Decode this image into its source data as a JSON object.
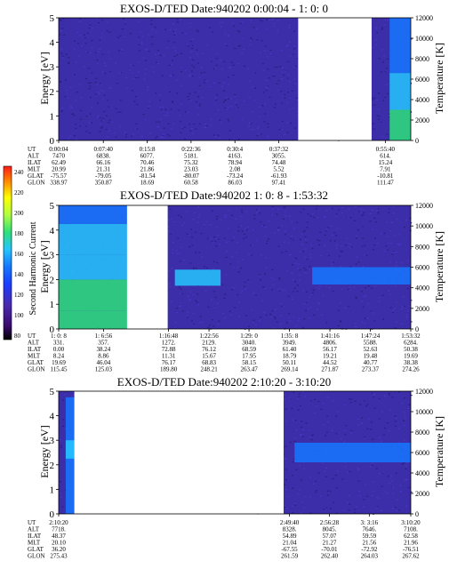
{
  "colorbar": {
    "label": "Second Harmonic Current",
    "ticks": [
      "240",
      "220",
      "200",
      "180",
      "160",
      "140",
      "120",
      "100",
      "80"
    ]
  },
  "chart_data": [
    {
      "type": "heatmap",
      "title": "EXOS-D/TED   Date:940202  0:00:04 - 1: 0: 0",
      "ylabel": "Energy [eV]",
      "y2label": "Temperature [K]",
      "ylim": [
        0,
        5
      ],
      "y2lim": [
        0,
        12000
      ],
      "yticks": [
        "0",
        "1",
        "2",
        "3",
        "4",
        "5"
      ],
      "y2ticks": [
        "0",
        "2000",
        "4000",
        "6000",
        "8000",
        "10000",
        "12000"
      ],
      "x": [
        "0:00:04",
        "0:07:40",
        "0:15:8",
        "0:22:36",
        "0:30:4",
        "0:37:32",
        "0:55:40"
      ],
      "x_axis_range": [
        "0:00:04",
        "1: 0: 0"
      ],
      "no_data_gaps": [
        [
          "0:40:50",
          "0:53:20"
        ]
      ],
      "table_rows": [
        {
          "label": "UT",
          "values": [
            "0:00:04",
            "0:07:40",
            "0:15:8",
            "0:22:36",
            "0:30:4",
            "0:37:32",
            "0:55:40"
          ]
        },
        {
          "label": "ALT",
          "values": [
            "7470",
            "6838.",
            "6077.",
            "5181.",
            "4163.",
            "3055.",
            "614."
          ]
        },
        {
          "label": "ILAT",
          "values": [
            "62.49",
            "66.16",
            "70.46",
            "75.32",
            "78.94",
            "74.48",
            "15.24"
          ]
        },
        {
          "label": "MLT",
          "values": [
            "20.99",
            "21.31",
            "21.86",
            "23.03",
            "2.08",
            "5.52",
            "7.91"
          ]
        },
        {
          "label": "GLAT",
          "values": [
            "-75.57",
            "-79.05",
            "-81.54",
            "-80.07",
            "-73.24",
            "-61.93",
            "-10.81"
          ]
        },
        {
          "label": "GLON",
          "values": [
            "338.97",
            "350.87",
            "18.69",
            "60.58",
            "86.03",
            "97.41",
            "111.47"
          ]
        }
      ]
    },
    {
      "type": "heatmap",
      "title": "EXOS-D/TED   Date:940202  1: 0: 8 - 1:53:32",
      "ylabel": "Energy [eV]",
      "y2label": "Temperature [K]",
      "ylim": [
        0,
        5
      ],
      "y2lim": [
        0,
        12000
      ],
      "yticks": [
        "0",
        "1",
        "2",
        "3",
        "4",
        "5"
      ],
      "y2ticks": [
        "0",
        "2000",
        "4000",
        "6000",
        "8000",
        "10000",
        "12000"
      ],
      "x": [
        "1: 0: 8",
        "1: 6:56",
        "1:16:48",
        "1:22:56",
        "1:29: 0",
        "1:35: 8",
        "1:41:16",
        "1:47:24",
        "1:53:32"
      ],
      "x_axis_range": [
        "1: 0: 8",
        "1:53:32"
      ],
      "no_data_gaps": [
        [
          "1:10:30",
          "1:16:40"
        ]
      ],
      "table_rows": [
        {
          "label": "UT",
          "values": [
            "1: 0: 8",
            "1: 6:56",
            "1:16:48",
            "1:22:56",
            "1:29: 0",
            "1:35: 8",
            "1:41:16",
            "1:47:24",
            "1:53:32"
          ]
        },
        {
          "label": "ALT",
          "values": [
            "331.",
            "357.",
            "1272.",
            "2129.",
            "3040.",
            "3949.",
            "4806.",
            "5588.",
            "6284."
          ]
        },
        {
          "label": "ILAT",
          "values": [
            "0.00",
            "38.24",
            "72.88",
            "76.12",
            "68.59",
            "61.40",
            "56.17",
            "52.63",
            "50.38"
          ]
        },
        {
          "label": "MLT",
          "values": [
            "8.24",
            "8.86",
            "11.31",
            "15.67",
            "17.95",
            "18.79",
            "19.21",
            "19.48",
            "19.69"
          ]
        },
        {
          "label": "GLAT",
          "values": [
            "19.69",
            "46.04",
            "76.17",
            "68.83",
            "58.15",
            "50.11",
            "44.52",
            "40.77",
            "38.38"
          ]
        },
        {
          "label": "GLON",
          "values": [
            "115.45",
            "125.03",
            "189.80",
            "248.21",
            "263.47",
            "269.14",
            "271.87",
            "273.37",
            "274.26"
          ]
        }
      ]
    },
    {
      "type": "heatmap",
      "title": "EXOS-D/TED   Date:940202  2:10:20 - 3:10:20",
      "ylabel": "Energy [eV]",
      "y2label": "Temperature [K]",
      "ylim": [
        0,
        5
      ],
      "y2lim": [
        0,
        12000
      ],
      "yticks": [
        "0",
        "1",
        "2",
        "3",
        "4",
        "5"
      ],
      "y2ticks": [
        "0",
        "2000",
        "4000",
        "6000",
        "8000",
        "10000",
        "12000"
      ],
      "x": [
        "2:10:20",
        "2:49:40",
        "2:56:28",
        "3: 3:16",
        "3:10:20"
      ],
      "x_axis_range": [
        "2:10:20",
        "3:10:20"
      ],
      "no_data_gaps": [
        [
          "2:13:00",
          "2:48:40"
        ]
      ],
      "table_rows": [
        {
          "label": "UT",
          "values": [
            "2:10:20",
            "2:49:40",
            "2:56:28",
            "3: 3:16",
            "3:10:20"
          ]
        },
        {
          "label": "ALT",
          "values": [
            "7718.",
            "8328.",
            "8045.",
            "7646.",
            "7108."
          ]
        },
        {
          "label": "ILAT",
          "values": [
            "48.37",
            "54.89",
            "57.07",
            "59.59",
            "62.58"
          ]
        },
        {
          "label": "MLT",
          "values": [
            "20.10",
            "21.04",
            "21.27",
            "21.56",
            "21.96"
          ]
        },
        {
          "label": "GLAT",
          "values": [
            "36.20",
            "-67.55",
            "-70.01",
            "-72.92",
            "-76.51"
          ]
        },
        {
          "label": "GLON",
          "values": [
            "275.43",
            "261.59",
            "262.40",
            "264.03",
            "267.62"
          ]
        }
      ]
    }
  ],
  "colors": {
    "background": "#3b2ea8",
    "speckle_a": "#4a36c4",
    "speckle_b": "#2a1f86",
    "cyan": "#26c6ff",
    "blue": "#1677ff",
    "green": "#2ee07a",
    "yellow": "#ffff00",
    "colorbar": [
      "#000000",
      "#3a0a6e",
      "#4a2ab0",
      "#1b3dff",
      "#1677ff",
      "#26c6ff",
      "#2ee07a",
      "#b0ff40",
      "#ffff00",
      "#ff8000",
      "#ff1a1a"
    ]
  }
}
